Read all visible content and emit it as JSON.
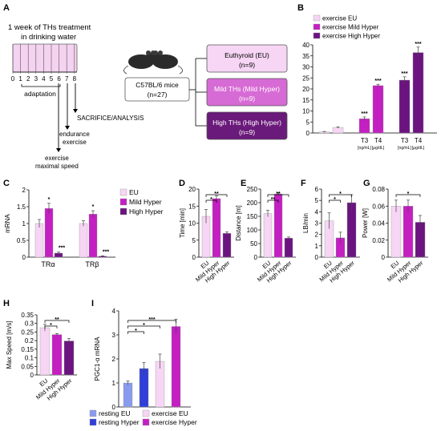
{
  "panel_labels": [
    "A",
    "B",
    "C",
    "D",
    "E",
    "F",
    "G",
    "H",
    "I"
  ],
  "panel_a": {
    "treatment_text_1": "1 week of THs treatment",
    "treatment_text_2": "in drinking water",
    "timeline_days": [
      "0",
      "1",
      "2",
      "3",
      "4",
      "5",
      "6",
      "7",
      "8"
    ],
    "adaptation": "adaptation",
    "sacrifice": "SACRIFICE/ANALYSIS",
    "endurance_1": "endurance",
    "endurance_2": "exercise",
    "maxspeed_1": "exercise",
    "maxspeed_2": "maximal speed",
    "mice_line1": "C57BL/6 mice",
    "mice_line2": "(n=27)",
    "groups": [
      {
        "name": "Euthyroid (EU)",
        "n": "(n=9)",
        "fill": "#f6d6f4",
        "text": "#000000"
      },
      {
        "name": "Mild THs (Mild Hyper)",
        "n": "(n=9)",
        "fill": "#d76bd5",
        "text": "#ffffff"
      },
      {
        "name": "High THs (High Hyper)",
        "n": "(n=9)",
        "fill": "#6a1a7a",
        "text": "#ffffff"
      }
    ]
  },
  "colors": {
    "eu": "#f6d6f4",
    "mild": "#c31fc1",
    "high": "#6b1480",
    "resting_eu": "#8a9aec",
    "resting_hyper": "#2f3fd8"
  },
  "chart_data": [
    {
      "panel": "B",
      "type": "bar",
      "legend": [
        "exercise EU",
        "exercise Mild Hyper",
        "exercise High Hyper"
      ],
      "ylim": [
        0,
        40
      ],
      "yticks": [
        "0",
        "5",
        "10",
        "15",
        "20",
        "25",
        "30",
        "35",
        "40"
      ],
      "groups": [
        {
          "name": "EU",
          "values": [
            0.5,
            2.5
          ],
          "err": [
            0.2,
            0.3
          ],
          "stars": [
            "",
            ""
          ]
        },
        {
          "name": "Mild Hyper",
          "values": [
            6.5,
            21.5
          ],
          "err": [
            0.8,
            0.6
          ],
          "stars": [
            "***",
            "***"
          ]
        },
        {
          "name": "High Hyper",
          "values": [
            24,
            36.5
          ],
          "err": [
            1.5,
            2.5
          ],
          "stars": [
            "***",
            "***"
          ]
        }
      ],
      "bar_labels": [
        "T3",
        "T4"
      ],
      "units": [
        "[ng/mL]",
        "[µg/dL]"
      ]
    },
    {
      "panel": "C",
      "type": "bar",
      "ylabel": "mRNA",
      "legend": [
        "EU",
        "Mild Hyper",
        "High Hyper"
      ],
      "ylim": [
        0,
        2
      ],
      "yticks": [
        "0",
        "0.5",
        "1",
        "1.5",
        "2"
      ],
      "categories": [
        "TRα",
        "TRβ"
      ],
      "series": [
        {
          "name": "EU",
          "values": [
            1.0,
            1.0
          ],
          "err": [
            0.12,
            0.08
          ],
          "stars": [
            "",
            ""
          ]
        },
        {
          "name": "Mild Hyper",
          "values": [
            1.45,
            1.28
          ],
          "err": [
            0.15,
            0.1
          ],
          "stars": [
            "*",
            "*"
          ]
        },
        {
          "name": "High Hyper",
          "values": [
            0.12,
            0.03
          ],
          "err": [
            0.03,
            0.01
          ],
          "stars": [
            "***",
            "***"
          ]
        }
      ]
    },
    {
      "panel": "D",
      "type": "bar",
      "ylabel": "Time [min]",
      "ylim": [
        0,
        20
      ],
      "yticks": [
        "0",
        "5",
        "10",
        "15",
        "20"
      ],
      "categories": [
        "EU",
        "Mild Hyper",
        "High Hyper"
      ],
      "values": [
        12,
        17.2,
        7
      ],
      "err": [
        2,
        0.8,
        0.4
      ],
      "brackets": [
        {
          "from": 0,
          "to": 1,
          "label": "*"
        },
        {
          "from": 0,
          "to": 2,
          "label": "**"
        }
      ]
    },
    {
      "panel": "E",
      "type": "bar",
      "ylabel": "Distance [m]",
      "ylim": [
        0,
        250
      ],
      "yticks": [
        "0",
        "50",
        "100",
        "150",
        "200",
        "250"
      ],
      "categories": [
        "EU",
        "Mild Hyper",
        "High Hyper"
      ],
      "values": [
        160,
        232,
        70
      ],
      "err": [
        12,
        5,
        4
      ],
      "brackets": [
        {
          "from": 0,
          "to": 1,
          "label": "**"
        },
        {
          "from": 0,
          "to": 2,
          "label": "**"
        }
      ]
    },
    {
      "panel": "F",
      "type": "bar",
      "ylabel": "LB/min",
      "ylim": [
        0,
        6
      ],
      "yticks": [
        "0",
        "1",
        "2",
        "3",
        "4",
        "5",
        "6"
      ],
      "categories": [
        "EU",
        "Mild Hyper",
        "High Hyper"
      ],
      "values": [
        3.2,
        1.7,
        4.8
      ],
      "err": [
        0.7,
        0.5,
        0.7
      ],
      "brackets": [
        {
          "from": 0,
          "to": 1,
          "label": "*"
        },
        {
          "from": 0,
          "to": 2,
          "label": "*"
        }
      ]
    },
    {
      "panel": "G",
      "type": "bar",
      "ylabel": "Power [W]",
      "ylim": [
        0,
        0.08
      ],
      "yticks": [
        "0",
        "0.02",
        "0.04",
        "0.06",
        "0.08"
      ],
      "categories": [
        "EU",
        "Mild Hyper",
        "High Hyper"
      ],
      "values": [
        0.06,
        0.06,
        0.041
      ],
      "err": [
        0.007,
        0.007,
        0.008
      ],
      "brackets": [
        {
          "from": 0,
          "to": 2,
          "label": "*"
        }
      ]
    },
    {
      "panel": "H",
      "type": "bar",
      "ylabel": "Max Speed [m/s]",
      "ylim": [
        0,
        0.35
      ],
      "yticks": [
        "0",
        "0.05",
        "0.1",
        "0.15",
        "0.2",
        "0.25",
        "0.3",
        "0.35"
      ],
      "categories": [
        "EU",
        "Mild Hyper",
        "High Hyper"
      ],
      "values": [
        0.275,
        0.235,
        0.198
      ],
      "err": [
        0.02,
        0.006,
        0.014
      ],
      "brackets": [
        {
          "from": 0,
          "to": 1,
          "label": "*"
        },
        {
          "from": 0,
          "to": 2,
          "label": "**"
        }
      ]
    },
    {
      "panel": "I",
      "type": "bar",
      "ylabel": "PGC1-α mRNA",
      "ylim": [
        0,
        4
      ],
      "yticks": [
        "0",
        "1",
        "2",
        "3",
        "4"
      ],
      "legend": [
        "resting EU",
        "resting Hyper",
        "exercise EU",
        "exercise Hyper"
      ],
      "values": [
        1.0,
        1.6,
        1.9,
        3.35
      ],
      "err": [
        0.08,
        0.25,
        0.3,
        0.3
      ],
      "brackets": [
        {
          "from": 0,
          "to": 1,
          "label": "*"
        },
        {
          "from": 0,
          "to": 2,
          "label": "*"
        },
        {
          "from": 0,
          "to": 3,
          "label": "***"
        }
      ]
    }
  ]
}
